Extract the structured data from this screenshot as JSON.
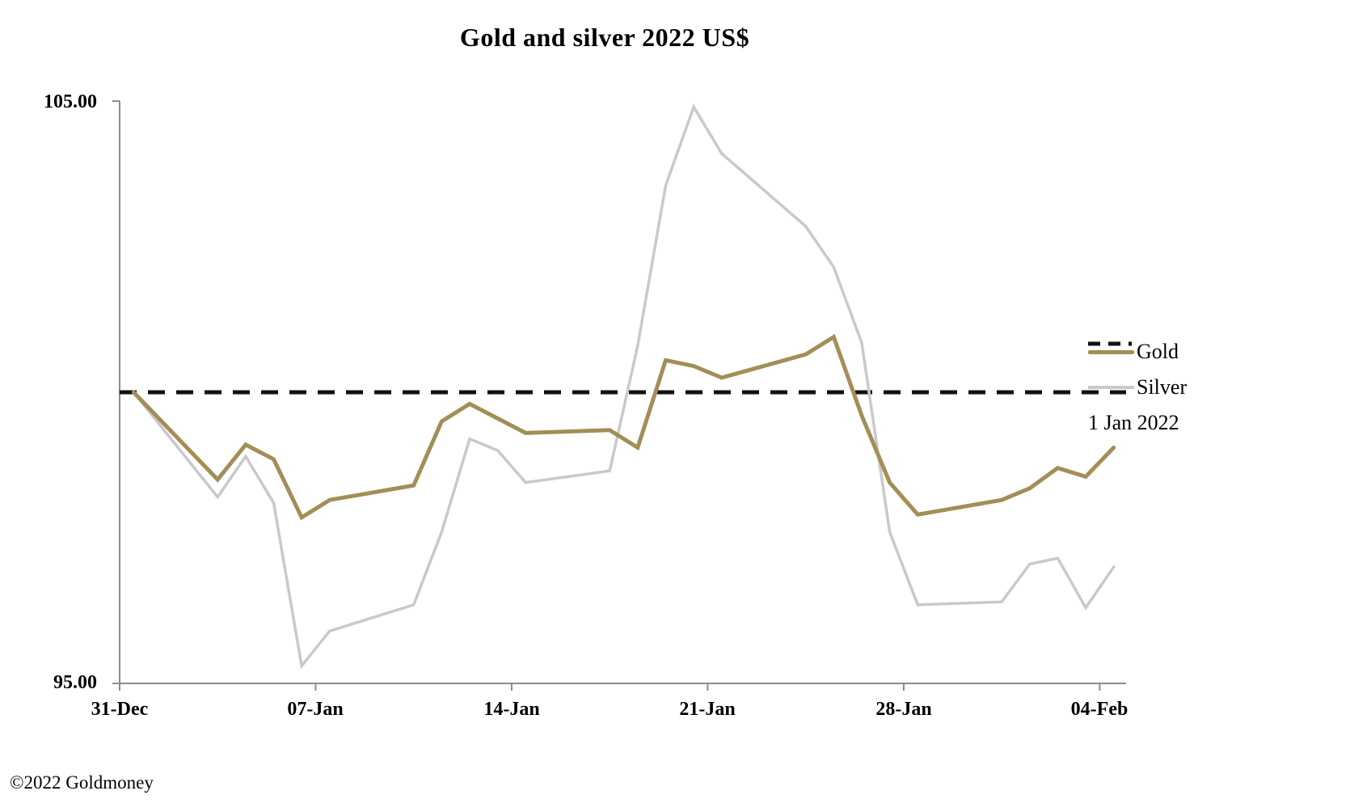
{
  "title": "Gold and silver 2022  US$",
  "copyright": "©2022 Goldmoney",
  "legend": {
    "gold_label": "Gold",
    "silver_label": "Silver",
    "ref_label": "1 Jan 2022"
  },
  "colors": {
    "gold": "#A28F57",
    "silver": "#C9C9C9",
    "reference": "#111111",
    "axis": "#8C8C8C"
  },
  "chart_data": {
    "type": "line",
    "title": "Gold and silver 2022  US$",
    "xlabel": "",
    "ylabel": "",
    "ylim": [
      95,
      105
    ],
    "grid": false,
    "legend_position": "right",
    "y_tick_labels": [
      "105.00",
      "95.00"
    ],
    "x_tick_labels": [
      "31-Dec",
      "07-Jan",
      "14-Jan",
      "21-Jan",
      "28-Jan",
      "04-Feb"
    ],
    "x_tick_day_offsets": [
      0,
      7,
      14,
      21,
      28,
      35
    ],
    "dates": [
      "31-Dec",
      "03-Jan",
      "04-Jan",
      "05-Jan",
      "06-Jan",
      "07-Jan",
      "10-Jan",
      "11-Jan",
      "12-Jan",
      "13-Jan",
      "14-Jan",
      "17-Jan",
      "18-Jan",
      "19-Jan",
      "20-Jan",
      "21-Jan",
      "24-Jan",
      "25-Jan",
      "26-Jan",
      "27-Jan",
      "28-Jan",
      "31-Jan",
      "01-Feb",
      "02-Feb",
      "03-Feb",
      "04-Feb"
    ],
    "day_offsets": [
      0,
      3,
      4,
      5,
      6,
      7,
      10,
      11,
      12,
      13,
      14,
      17,
      18,
      19,
      20,
      21,
      24,
      25,
      26,
      27,
      28,
      31,
      32,
      33,
      34,
      35
    ],
    "series": [
      {
        "name": "Gold",
        "values": [
          100.0,
          98.5,
          99.1,
          98.85,
          97.85,
          98.15,
          98.4,
          99.5,
          99.8,
          99.55,
          99.3,
          99.35,
          99.05,
          100.55,
          100.45,
          100.25,
          100.65,
          100.95,
          99.6,
          98.45,
          97.9,
          98.15,
          98.35,
          98.7,
          98.55,
          99.05
        ]
      },
      {
        "name": "Silver",
        "values": [
          100.0,
          98.2,
          98.9,
          98.1,
          95.3,
          95.9,
          96.35,
          97.6,
          99.2,
          99.0,
          98.45,
          98.65,
          100.8,
          103.55,
          104.9,
          104.1,
          102.85,
          102.15,
          100.85,
          97.6,
          96.35,
          96.4,
          97.05,
          97.15,
          96.3,
          97.0
        ]
      }
    ],
    "reference_line": {
      "label": "1 Jan 2022",
      "value": 100,
      "style": "dashed"
    }
  }
}
